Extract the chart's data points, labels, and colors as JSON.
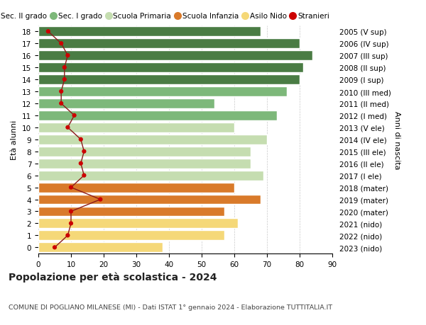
{
  "ages": [
    18,
    17,
    16,
    15,
    14,
    13,
    12,
    11,
    10,
    9,
    8,
    7,
    6,
    5,
    4,
    3,
    2,
    1,
    0
  ],
  "bar_values": [
    68,
    80,
    84,
    81,
    80,
    76,
    54,
    73,
    60,
    70,
    65,
    65,
    69,
    60,
    68,
    57,
    61,
    57,
    38
  ],
  "right_labels": [
    "2005 (V sup)",
    "2006 (IV sup)",
    "2007 (III sup)",
    "2008 (II sup)",
    "2009 (I sup)",
    "2010 (III med)",
    "2011 (II med)",
    "2012 (I med)",
    "2013 (V ele)",
    "2014 (IV ele)",
    "2015 (III ele)",
    "2016 (II ele)",
    "2017 (I ele)",
    "2018 (mater)",
    "2019 (mater)",
    "2020 (mater)",
    "2021 (nido)",
    "2022 (nido)",
    "2023 (nido)"
  ],
  "bar_colors": [
    "#4a7c44",
    "#4a7c44",
    "#4a7c44",
    "#4a7c44",
    "#4a7c44",
    "#7db87a",
    "#7db87a",
    "#7db87a",
    "#c5ddb0",
    "#c5ddb0",
    "#c5ddb0",
    "#c5ddb0",
    "#c5ddb0",
    "#d97a2a",
    "#d97a2a",
    "#d97a2a",
    "#f5d878",
    "#f5d878",
    "#f5d878"
  ],
  "stranieri": [
    3,
    7,
    9,
    8,
    8,
    7,
    7,
    11,
    9,
    13,
    14,
    13,
    14,
    10,
    19,
    10,
    10,
    9,
    5
  ],
  "legend_labels": [
    "Sec. II grado",
    "Sec. I grado",
    "Scuola Primaria",
    "Scuola Infanzia",
    "Asilo Nido",
    "Stranieri"
  ],
  "legend_colors": [
    "#4a7c44",
    "#7db87a",
    "#c5ddb0",
    "#d97a2a",
    "#f5d878",
    "#cc0000"
  ],
  "title": "Popolazione per età scolastica - 2024",
  "subtitle": "COMUNE DI POGLIANO MILANESE (MI) - Dati ISTAT 1° gennaio 2024 - Elaborazione TUTTITALIA.IT",
  "ylabel_left": "Età alunni",
  "ylabel_right": "Anni di nascita",
  "xlim": [
    0,
    90
  ],
  "bg_color": "#ffffff",
  "plot_bg_color": "#ffffff"
}
